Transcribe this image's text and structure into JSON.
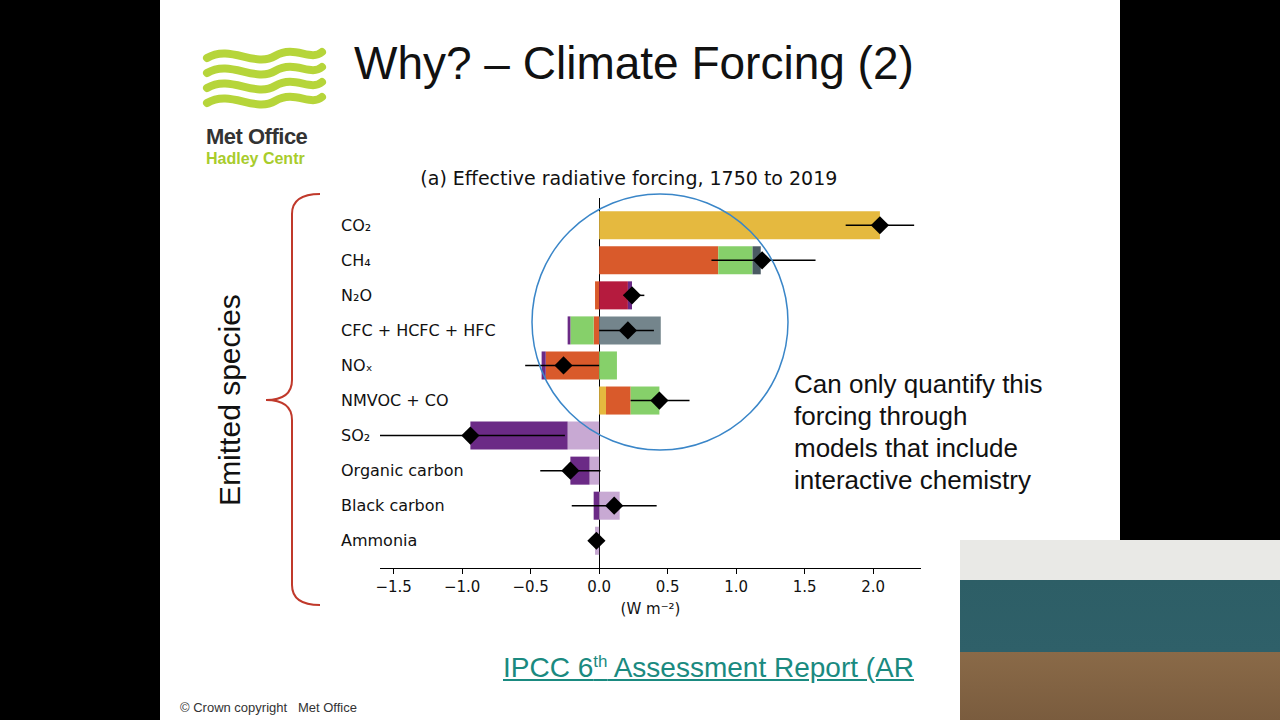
{
  "slide": {
    "title": "Why? – Climate Forcing (2)",
    "logo": {
      "name": "Met Office",
      "subname": "Hadley Centr"
    },
    "bracket_label": "Emitted species",
    "note_lines": [
      "Can only quantify this",
      "forcing through",
      "models that include",
      "interactive chemistry"
    ],
    "link": {
      "text": "IPCC 6",
      "sup": "th",
      "rest": " Assessment Report (AR"
    },
    "footer": "© Crown copyright   Met Office"
  },
  "chart_data": {
    "type": "bar",
    "orientation": "horizontal",
    "stacked": true,
    "grid": false,
    "title": "(a) Effective radiative forcing, 1750 to 2019",
    "x_label": "(W m⁻²)",
    "categories": [
      "CO₂",
      "CH₄",
      "N₂O",
      "CFC + HCFC + HFC",
      "NOₓ",
      "NMVOC + CO",
      "SO₂",
      "Organic carbon",
      "Black carbon",
      "Ammonia"
    ],
    "xlim": [
      -1.6,
      2.35
    ],
    "xticks": [
      {
        "value": -1.5,
        "label": "−1.5"
      },
      {
        "value": -1.0,
        "label": "−1.0"
      },
      {
        "value": -0.5,
        "label": "−0.5"
      },
      {
        "value": 0,
        "label": "0.0"
      },
      0.5,
      {
        "value": 1.0,
        "label": "1.0"
      },
      1.5,
      {
        "value": 2.0,
        "label": "2.0"
      }
    ],
    "series": [
      {
        "color": "#e5b93f",
        "values": [
          2.05,
          0,
          0,
          0,
          0,
          0.05,
          0,
          0,
          0,
          0
        ]
      },
      {
        "color": "#d95a2b",
        "values": [
          0,
          0.87,
          -0.03,
          -0.04,
          -0.39,
          0.18,
          0,
          0,
          0,
          0
        ]
      },
      {
        "color": "#b51b3e",
        "values": [
          0,
          0,
          0.21,
          0,
          0,
          0,
          0,
          0,
          0,
          0
        ]
      },
      {
        "color": "#86d06a",
        "values": [
          0,
          0.25,
          0,
          -0.17,
          0.13,
          0.21,
          0,
          0,
          0,
          0
        ]
      },
      {
        "color": "#4a5a63",
        "values": [
          0,
          0.06,
          0,
          0,
          0,
          0,
          0,
          0,
          0,
          0
        ]
      },
      {
        "color": "#74858c",
        "values": [
          0,
          0,
          0,
          0.45,
          0,
          0,
          0,
          0,
          0,
          0
        ]
      },
      {
        "color": "#c8a9d3",
        "values": [
          0,
          0,
          0,
          0,
          0,
          0,
          -0.23,
          -0.07,
          0.15,
          -0.03
        ]
      },
      {
        "color": "#6b2a86",
        "values": [
          0,
          0,
          0.03,
          -0.02,
          -0.03,
          0,
          -0.71,
          -0.14,
          -0.04,
          0
        ]
      }
    ],
    "best_estimate": [
      2.05,
      1.19,
      0.24,
      0.21,
      -0.26,
      0.44,
      -0.94,
      -0.21,
      0.11,
      -0.02
    ],
    "error_low": [
      1.8,
      0.82,
      0.18,
      0.0,
      -0.54,
      0.23,
      -1.63,
      -0.43,
      -0.2,
      -0.04
    ],
    "error_high": [
      2.3,
      1.58,
      0.33,
      0.4,
      0.0,
      0.66,
      -0.25,
      0.01,
      0.42,
      0.0
    ]
  }
}
